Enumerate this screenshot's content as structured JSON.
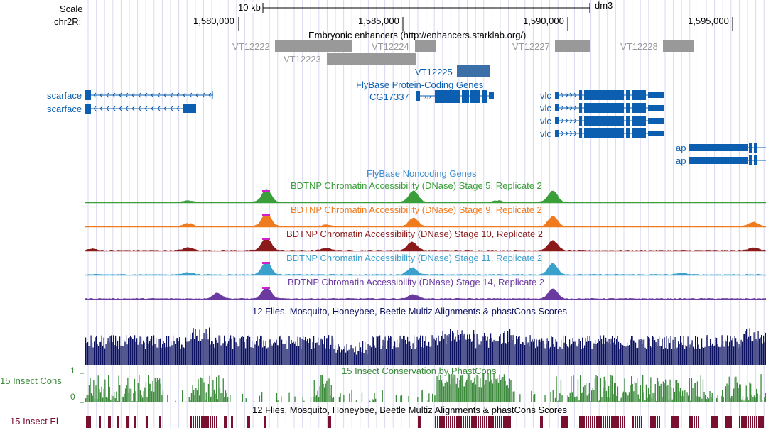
{
  "ruler": {
    "scale_label": "Scale",
    "chrom_label": "chr2R:",
    "scale_text": "10 kb",
    "assembly": "dm3",
    "positions": [
      "1,580,000",
      "1,585,000",
      "1,590,000",
      "1,595,000"
    ]
  },
  "tracks": {
    "enhancers": {
      "title": "Embryonic enhancers (http://enhancers.starklab.org/)",
      "items": [
        "VT12222",
        "VT12223",
        "VT12224",
        "VT12225",
        "VT12227",
        "VT12228"
      ]
    },
    "genes": {
      "title": "FlyBase Protein-Coding Genes",
      "left_labels": [
        "scarface",
        "scarface"
      ],
      "cg_label": "CG17337",
      "vlc_labels": [
        "vlc",
        "vlc",
        "vlc",
        "vlc"
      ],
      "ap_labels": [
        "ap",
        "ap"
      ]
    },
    "noncoding": {
      "title": "FlyBase Noncoding Genes"
    },
    "dnase": [
      {
        "title": "BDTNP Chromatin Accessibility (DNase) Stage 5, Replicate 2",
        "color": "#3a9e3a"
      },
      {
        "title": "BDTNP Chromatin Accessibility (DNase) Stage 9, Replicate 2",
        "color": "#f07a1e"
      },
      {
        "title": "BDTNP Chromatin Accessibility (DNase) Stage 10, Replicate 2",
        "color": "#8b1a1a"
      },
      {
        "title": "BDTNP Chromatin Accessibility (DNase) Stage 11, Replicate 2",
        "color": "#3aa0cc"
      },
      {
        "title": "BDTNP Chromatin Accessibility (DNase) Stage 14, Replicate 2",
        "color": "#6b3aa0"
      }
    ],
    "multiz": {
      "title": "12 Flies, Mosquito, Honeybee, Beetle Multiz Alignments & phastCons Scores",
      "color": "#0c1060"
    },
    "phastcons": {
      "title": "15 Insect Conservation by PhastCons",
      "side_label": "15 Insect Cons",
      "max": "1",
      "min": "0",
      "color": "#3a8a3a"
    },
    "elements": {
      "title": "12 Flies, Mosquito, Honeybee, Beetle Multiz Alignments & phastCons Scores",
      "side_label": "15 Insect El",
      "color": "#7a1030"
    }
  },
  "colors": {
    "gene": "#0c5fb0",
    "enhancer": "#999999",
    "enhancer_dark": "#3a6fa8",
    "peak_top": "#d020d0"
  }
}
